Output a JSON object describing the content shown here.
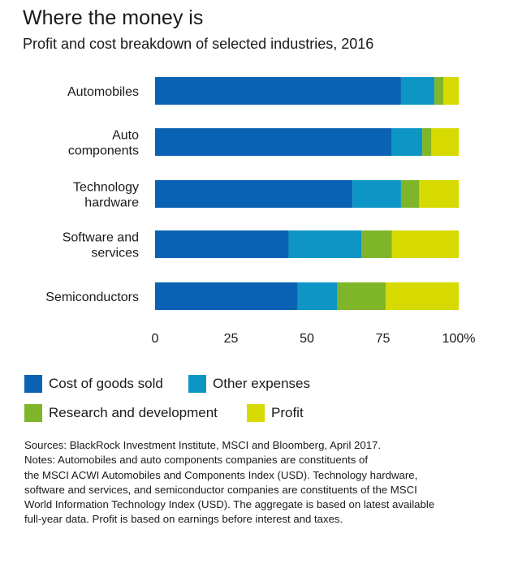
{
  "header": {
    "title": "Where the money is",
    "subtitle": "Profit and cost breakdown of selected industries, 2016"
  },
  "chart_data": {
    "type": "bar",
    "orientation": "horizontal",
    "stacked": true,
    "categories": [
      [
        "Automobiles"
      ],
      [
        "Auto",
        "components"
      ],
      [
        "Technology",
        "hardware"
      ],
      [
        "Software and",
        "services"
      ],
      [
        "Semiconductors"
      ]
    ],
    "series": [
      {
        "name": "Cost of goods sold",
        "color": "#0a62b4",
        "values": [
          81,
          78,
          65,
          44,
          47
        ]
      },
      {
        "name": "Other expenses",
        "color": "#0d96c5",
        "values": [
          11,
          10,
          16,
          24,
          13
        ]
      },
      {
        "name": "Research and development",
        "color": "#7fb529",
        "values": [
          3,
          3,
          6,
          10,
          16
        ]
      },
      {
        "name": "Profit",
        "color": "#d7da00",
        "values": [
          5,
          9,
          13,
          22,
          24
        ]
      }
    ],
    "xlim": [
      0,
      100
    ],
    "x_ticks": [
      "0",
      "25",
      "50",
      "75",
      "100%"
    ],
    "x_tick_values": [
      0,
      25,
      50,
      75,
      100
    ],
    "grid": false,
    "legend_position": "bottom"
  },
  "sources": {
    "lines": [
      "Sources: BlackRock Investment Institute, MSCI and Bloomberg, April 2017.",
      "Notes: Automobiles and auto components companies are constituents of",
      "the MSCI ACWI Automobiles and Components Index (USD). Technology hardware,",
      "software and services, and semiconductor companies are constituents of the MSCI",
      "World Information Technology Index (USD). The aggregate is based on latest available",
      "full-year data. Profit is based on earnings before interest and taxes."
    ]
  }
}
